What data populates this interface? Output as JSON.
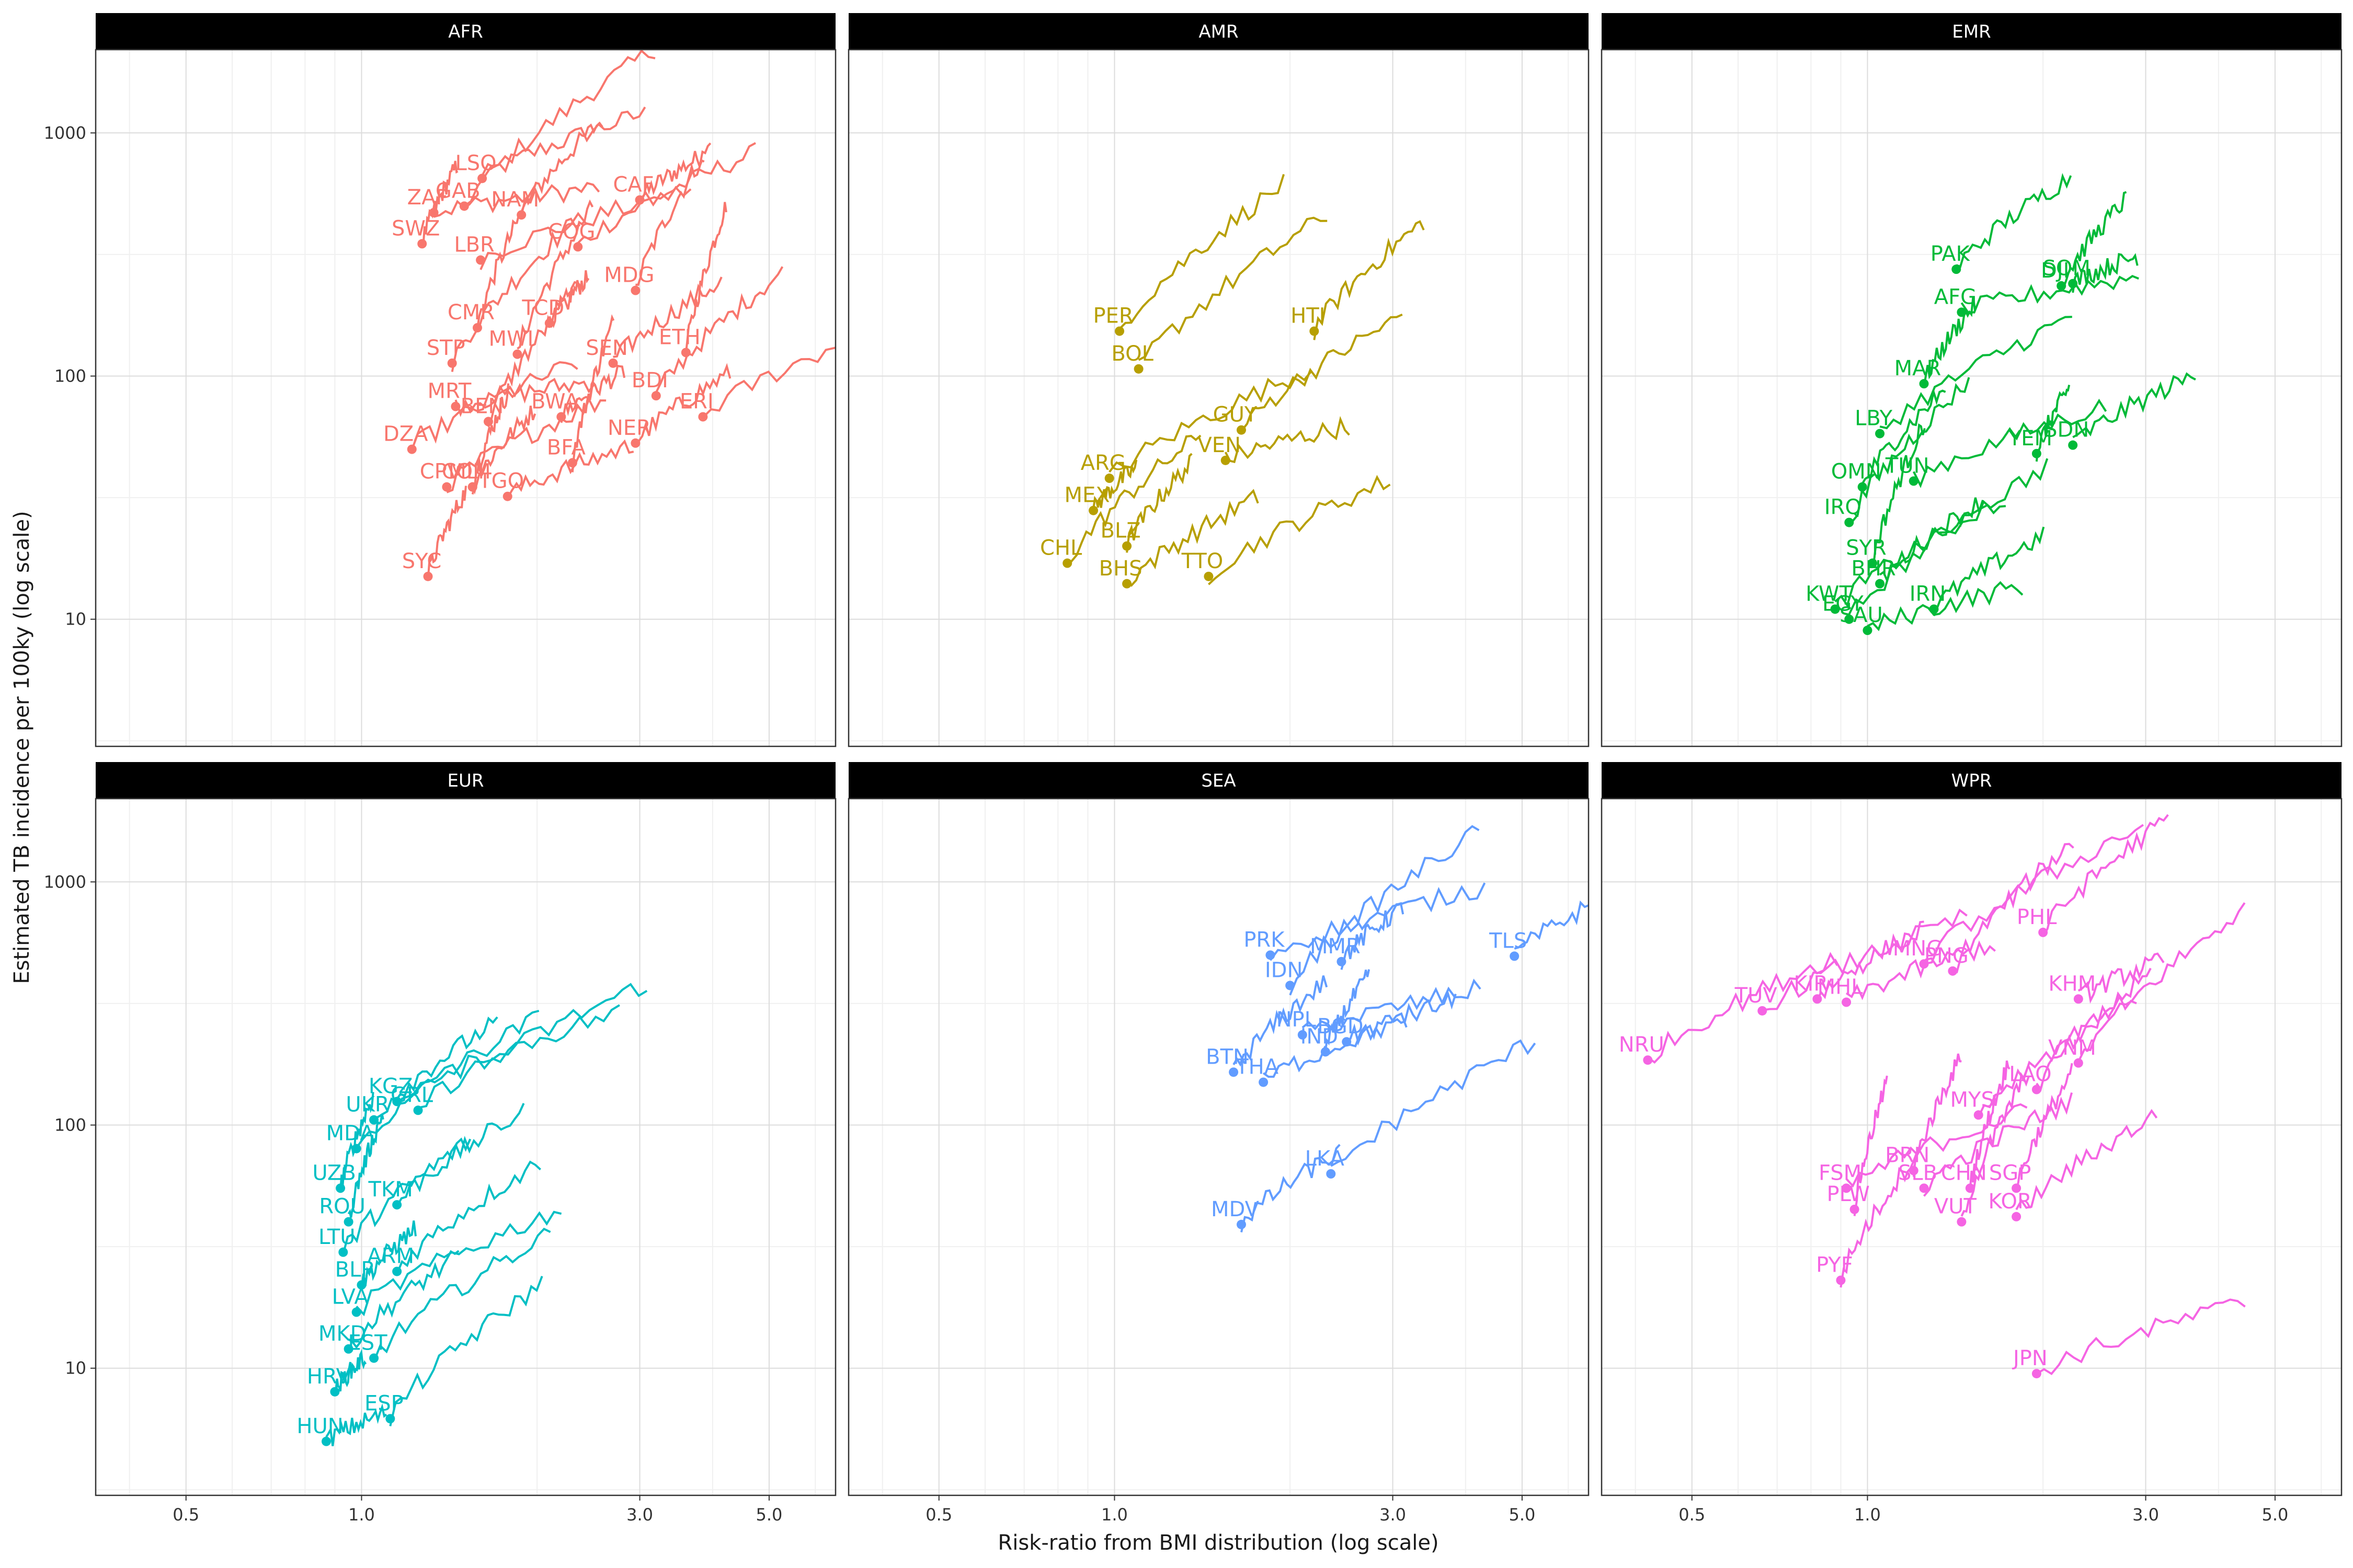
{
  "chart_data": {
    "type": "line",
    "facet_type": "faceted-trajectory",
    "xlabel": "Risk-ratio from BMI distribution (log scale)",
    "ylabel": "Estimated TB incidence per 100ky  (log scale)",
    "xscale": "log",
    "yscale": "log",
    "xlim": [
      0.35,
      6.5
    ],
    "ylim": [
      3,
      2200
    ],
    "xticks": [
      0.5,
      1.0,
      3.0,
      5.0
    ],
    "xtick_labels": [
      "0.5",
      "1.0",
      "3.0",
      "5.0"
    ],
    "yticks": [
      10,
      100,
      1000
    ],
    "ytick_labels": [
      "10",
      "100",
      "1000"
    ],
    "grid": true,
    "legend": "none",
    "panels": [
      {
        "region": "AFR",
        "color": "#F8766D",
        "points": [
          {
            "label": "LSO",
            "x": 1.61,
            "y": 650
          },
          {
            "label": "CAF",
            "x": 3.0,
            "y": 530
          },
          {
            "label": "ZAF",
            "x": 1.33,
            "y": 470
          },
          {
            "label": "GAB",
            "x": 1.5,
            "y": 500
          },
          {
            "label": "NAM",
            "x": 1.88,
            "y": 460
          },
          {
            "label": "LBR",
            "x": 1.6,
            "y": 300
          },
          {
            "label": "COG",
            "x": 2.35,
            "y": 340
          },
          {
            "label": "SWZ",
            "x": 1.27,
            "y": 350
          },
          {
            "label": "MDG",
            "x": 2.95,
            "y": 225
          },
          {
            "label": "CMR",
            "x": 1.58,
            "y": 158
          },
          {
            "label": "TCD",
            "x": 2.1,
            "y": 165
          },
          {
            "label": "ETH",
            "x": 3.6,
            "y": 125
          },
          {
            "label": "STP",
            "x": 1.43,
            "y": 113
          },
          {
            "label": "MWI",
            "x": 1.85,
            "y": 123
          },
          {
            "label": "SEN",
            "x": 2.7,
            "y": 113
          },
          {
            "label": "BDI",
            "x": 3.2,
            "y": 83
          },
          {
            "label": "MRT",
            "x": 1.45,
            "y": 75
          },
          {
            "label": "BEN",
            "x": 1.65,
            "y": 65
          },
          {
            "label": "BWA",
            "x": 2.2,
            "y": 68
          },
          {
            "label": "DZA",
            "x": 1.22,
            "y": 50
          },
          {
            "label": "ERI",
            "x": 3.85,
            "y": 68
          },
          {
            "label": "NER",
            "x": 2.95,
            "y": 53
          },
          {
            "label": "CPV",
            "x": 1.4,
            "y": 35
          },
          {
            "label": "MLI",
            "x": 1.55,
            "y": 35
          },
          {
            "label": "BFA",
            "x": 2.3,
            "y": 44
          },
          {
            "label": "COM",
            "x": 1.55,
            "y": 35
          },
          {
            "label": "TGO",
            "x": 1.78,
            "y": 32
          },
          {
            "label": "SYC",
            "x": 1.3,
            "y": 15
          }
        ]
      },
      {
        "region": "AMR",
        "color": "#B79F00",
        "points": [
          {
            "label": "PER",
            "x": 1.02,
            "y": 153
          },
          {
            "label": "BOL",
            "x": 1.1,
            "y": 107
          },
          {
            "label": "HTI",
            "x": 2.2,
            "y": 153
          },
          {
            "label": "GUY",
            "x": 1.65,
            "y": 60
          },
          {
            "label": "VEN",
            "x": 1.55,
            "y": 45
          },
          {
            "label": "ARG",
            "x": 0.98,
            "y": 38
          },
          {
            "label": "MEX",
            "x": 0.92,
            "y": 28
          },
          {
            "label": "CHL",
            "x": 0.83,
            "y": 17
          },
          {
            "label": "BLZ",
            "x": 1.05,
            "y": 20
          },
          {
            "label": "TTO",
            "x": 1.45,
            "y": 15
          },
          {
            "label": "BHS",
            "x": 1.05,
            "y": 14
          }
        ]
      },
      {
        "region": "EMR",
        "color": "#00BA38",
        "points": [
          {
            "label": "PAK",
            "x": 1.42,
            "y": 275
          },
          {
            "label": "SOM",
            "x": 2.25,
            "y": 240
          },
          {
            "label": "DJI",
            "x": 2.15,
            "y": 235
          },
          {
            "label": "AFG",
            "x": 1.45,
            "y": 183
          },
          {
            "label": "MAR",
            "x": 1.25,
            "y": 93
          },
          {
            "label": "LBY",
            "x": 1.05,
            "y": 58
          },
          {
            "label": "SDN",
            "x": 2.25,
            "y": 52
          },
          {
            "label": "YEM",
            "x": 1.95,
            "y": 48
          },
          {
            "label": "OMN",
            "x": 0.98,
            "y": 35
          },
          {
            "label": "TUN",
            "x": 1.2,
            "y": 37
          },
          {
            "label": "IRQ",
            "x": 0.93,
            "y": 25
          },
          {
            "label": "SYR",
            "x": 1.02,
            "y": 17
          },
          {
            "label": "KWT",
            "x": 0.88,
            "y": 11
          },
          {
            "label": "EGY",
            "x": 0.93,
            "y": 10
          },
          {
            "label": "BHR",
            "x": 1.05,
            "y": 14
          },
          {
            "label": "IRN",
            "x": 1.3,
            "y": 11
          },
          {
            "label": "SAU",
            "x": 1.0,
            "y": 9
          }
        ]
      },
      {
        "region": "EUR",
        "color": "#00BFC4",
        "points": [
          {
            "label": "KGZ",
            "x": 1.15,
            "y": 125
          },
          {
            "label": "UKR",
            "x": 1.05,
            "y": 105
          },
          {
            "label": "GRL",
            "x": 1.25,
            "y": 115
          },
          {
            "label": "MDA",
            "x": 0.98,
            "y": 80
          },
          {
            "label": "UZB",
            "x": 0.92,
            "y": 55
          },
          {
            "label": "TKM",
            "x": 1.15,
            "y": 47
          },
          {
            "label": "ROU",
            "x": 0.95,
            "y": 40
          },
          {
            "label": "LTU",
            "x": 0.93,
            "y": 30
          },
          {
            "label": "ARM",
            "x": 1.15,
            "y": 25
          },
          {
            "label": "BLR",
            "x": 1.0,
            "y": 22
          },
          {
            "label": "LVA",
            "x": 0.98,
            "y": 17
          },
          {
            "label": "MKD",
            "x": 0.95,
            "y": 12
          },
          {
            "label": "EST",
            "x": 1.05,
            "y": 11
          },
          {
            "label": "HRV",
            "x": 0.9,
            "y": 8
          },
          {
            "label": "ESP",
            "x": 1.12,
            "y": 6.2
          },
          {
            "label": "HUN",
            "x": 0.87,
            "y": 5
          }
        ]
      },
      {
        "region": "SEA",
        "color": "#619CFF",
        "points": [
          {
            "label": "PRK",
            "x": 1.85,
            "y": 500
          },
          {
            "label": "MMR",
            "x": 2.45,
            "y": 470
          },
          {
            "label": "TLS",
            "x": 4.85,
            "y": 495
          },
          {
            "label": "IDN",
            "x": 2.0,
            "y": 375
          },
          {
            "label": "NPL",
            "x": 2.1,
            "y": 235
          },
          {
            "label": "BGD",
            "x": 2.5,
            "y": 220
          },
          {
            "label": "IND",
            "x": 2.3,
            "y": 200
          },
          {
            "label": "BTN",
            "x": 1.6,
            "y": 165
          },
          {
            "label": "THA",
            "x": 1.8,
            "y": 150
          },
          {
            "label": "LKA",
            "x": 2.35,
            "y": 63
          },
          {
            "label": "MDV",
            "x": 1.65,
            "y": 39
          }
        ]
      },
      {
        "region": "WPR",
        "color": "#F564E3",
        "points": [
          {
            "label": "MNG",
            "x": 1.25,
            "y": 460
          },
          {
            "label": "PHL",
            "x": 2.0,
            "y": 620
          },
          {
            "label": "PNG",
            "x": 1.4,
            "y": 430
          },
          {
            "label": "KIR",
            "x": 0.82,
            "y": 330
          },
          {
            "label": "KHM",
            "x": 2.3,
            "y": 330
          },
          {
            "label": "TUV",
            "x": 0.66,
            "y": 295
          },
          {
            "label": "MHL",
            "x": 0.92,
            "y": 320
          },
          {
            "label": "VNM",
            "x": 2.3,
            "y": 180
          },
          {
            "label": "NRU",
            "x": 0.42,
            "y": 185
          },
          {
            "label": "MYS",
            "x": 1.55,
            "y": 110
          },
          {
            "label": "LAO",
            "x": 1.95,
            "y": 140
          },
          {
            "label": "BRN",
            "x": 1.2,
            "y": 65
          },
          {
            "label": "SGP",
            "x": 1.8,
            "y": 55
          },
          {
            "label": "FSM",
            "x": 0.92,
            "y": 55
          },
          {
            "label": "SLB",
            "x": 1.25,
            "y": 55
          },
          {
            "label": "CHN",
            "x": 1.5,
            "y": 55
          },
          {
            "label": "PLW",
            "x": 0.95,
            "y": 45
          },
          {
            "label": "VUT",
            "x": 1.45,
            "y": 40
          },
          {
            "label": "KOR",
            "x": 1.8,
            "y": 42
          },
          {
            "label": "PYF",
            "x": 0.9,
            "y": 23
          },
          {
            "label": "JPN",
            "x": 1.95,
            "y": 9.5
          }
        ]
      }
    ]
  }
}
